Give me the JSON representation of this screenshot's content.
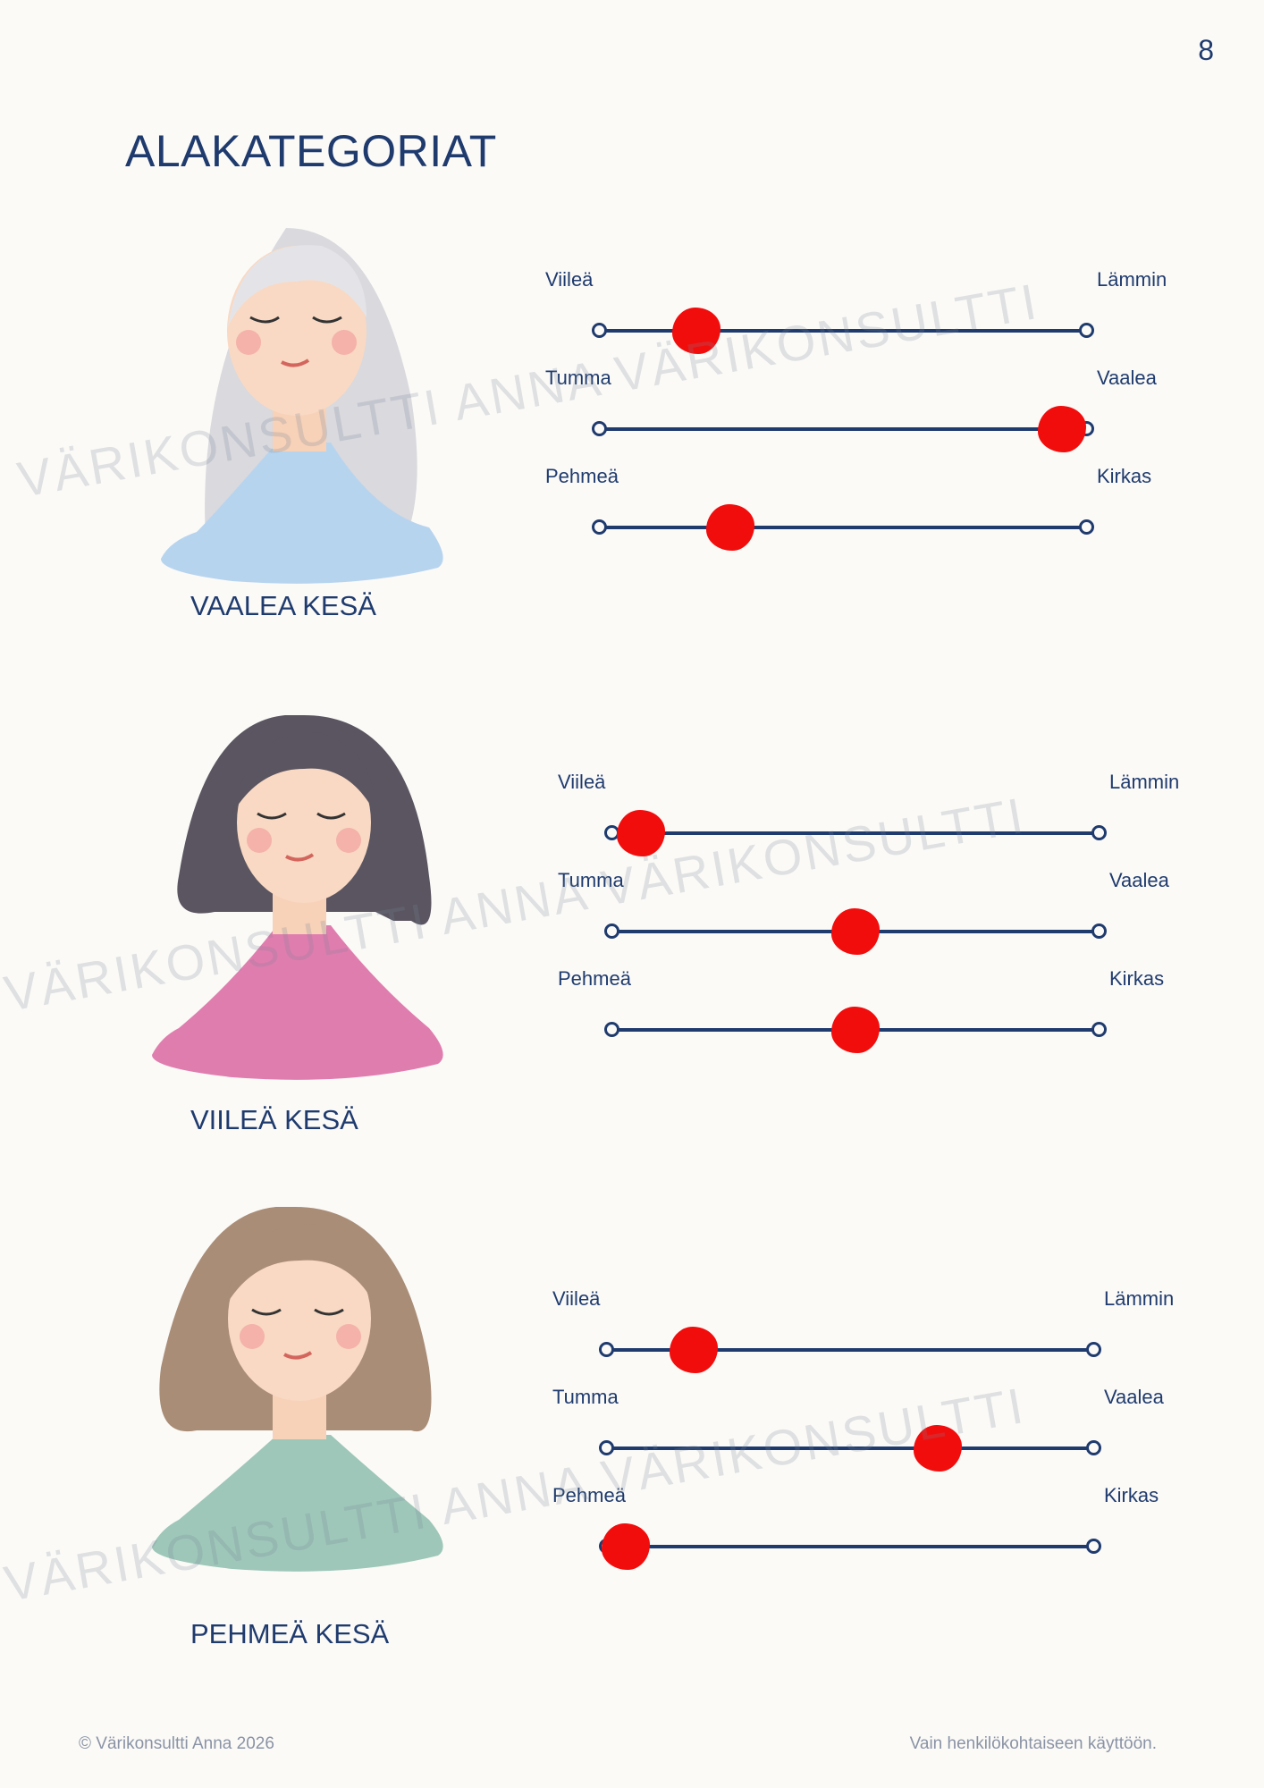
{
  "page_number": "8",
  "title": "ALAKATEGORIAT",
  "watermark_text": "VÄRIKONSULTTI ANNA VÄRIKONSULTTI",
  "colors": {
    "text": "#1f3b6e",
    "marker": "#f20d0d",
    "background": "#fbfaf7"
  },
  "categories": [
    {
      "name": "VAALEA KESÄ",
      "portrait": "woman-silver-hair-light-blue-top",
      "sliders": [
        {
          "left_label": "Viileä",
          "right_label": "Lämmin",
          "value": 0.2
        },
        {
          "left_label": "Tumma",
          "right_label": "Vaalea",
          "value": 0.95
        },
        {
          "left_label": "Pehmeä",
          "right_label": "Kirkas",
          "value": 0.27
        }
      ]
    },
    {
      "name": "VIILEÄ KESÄ",
      "portrait": "woman-dark-hair-pink-top",
      "sliders": [
        {
          "left_label": "Viileä",
          "right_label": "Lämmin",
          "value": 0.06
        },
        {
          "left_label": "Tumma",
          "right_label": "Vaalea",
          "value": 0.5
        },
        {
          "left_label": "Pehmeä",
          "right_label": "Kirkas",
          "value": 0.5
        }
      ]
    },
    {
      "name": "PEHMEÄ KESÄ",
      "portrait": "woman-brown-hair-green-top",
      "sliders": [
        {
          "left_label": "Viileä",
          "right_label": "Lämmin",
          "value": 0.18
        },
        {
          "left_label": "Tumma",
          "right_label": "Vaalea",
          "value": 0.68
        },
        {
          "left_label": "Pehmeä",
          "right_label": "Kirkas",
          "value": 0.04
        }
      ]
    }
  ],
  "footer": {
    "copyright": "© Värikonsultti Anna 2026",
    "note": "Vain henkilökohtaiseen käyttöön."
  }
}
